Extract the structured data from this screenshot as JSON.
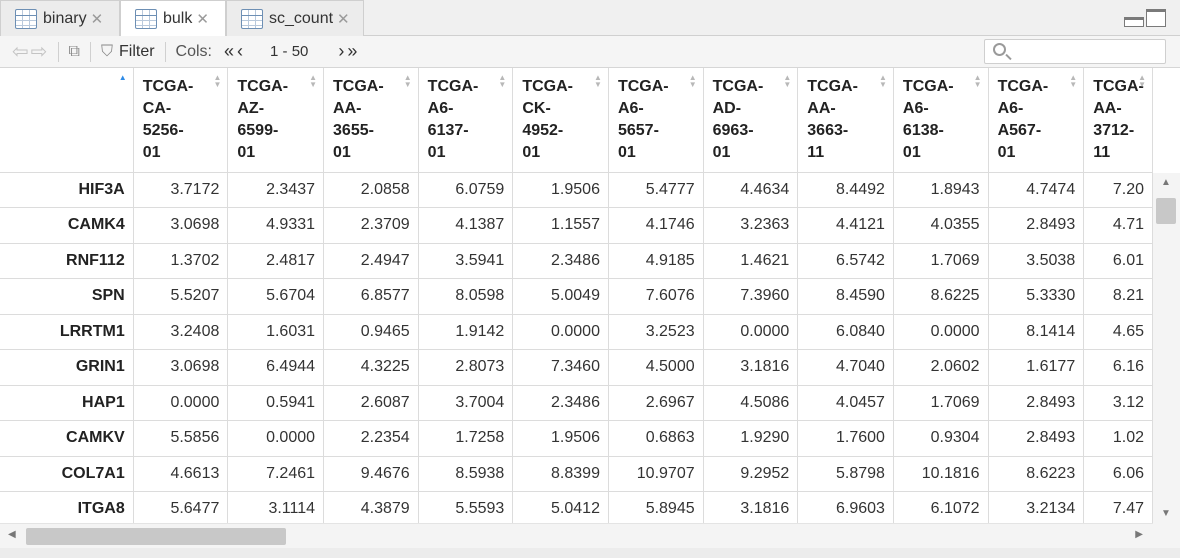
{
  "tabs": [
    {
      "label": "binary",
      "active": false
    },
    {
      "label": "bulk",
      "active": true
    },
    {
      "label": "sc_count",
      "active": false
    }
  ],
  "toolbar": {
    "filter_label": "Filter",
    "cols_label": "Cols:",
    "range_text": "1 - 50",
    "search_placeholder": ""
  },
  "columns": [
    [
      "TCGA-",
      "CA-",
      "5256-",
      "01"
    ],
    [
      "TCGA-",
      "AZ-",
      "6599-",
      "01"
    ],
    [
      "TCGA-",
      "AA-",
      "3655-",
      "01"
    ],
    [
      "TCGA-",
      "A6-",
      "6137-",
      "01"
    ],
    [
      "TCGA-",
      "CK-",
      "4952-",
      "01"
    ],
    [
      "TCGA-",
      "A6-",
      "5657-",
      "01"
    ],
    [
      "TCGA-",
      "AD-",
      "6963-",
      "01"
    ],
    [
      "TCGA-",
      "AA-",
      "3663-",
      "11"
    ],
    [
      "TCGA-",
      "A6-",
      "6138-",
      "01"
    ],
    [
      "TCGA-",
      "A6-",
      "A567-",
      "01"
    ],
    [
      "TCGA-",
      "AA-",
      "3712-",
      "11"
    ]
  ],
  "rows": [
    {
      "name": "HIF3A",
      "values": [
        "3.7172",
        "2.3437",
        "2.0858",
        "6.0759",
        "1.9506",
        "5.4777",
        "4.4634",
        "8.4492",
        "1.8943",
        "4.7474",
        "7.20"
      ]
    },
    {
      "name": "CAMK4",
      "values": [
        "3.0698",
        "4.9331",
        "2.3709",
        "4.1387",
        "1.1557",
        "4.1746",
        "3.2363",
        "4.4121",
        "4.0355",
        "2.8493",
        "4.71"
      ]
    },
    {
      "name": "RNF112",
      "values": [
        "1.3702",
        "2.4817",
        "2.4947",
        "3.5941",
        "2.3486",
        "4.9185",
        "1.4621",
        "6.5742",
        "1.7069",
        "3.5038",
        "6.01"
      ]
    },
    {
      "name": "SPN",
      "values": [
        "5.5207",
        "5.6704",
        "6.8577",
        "8.0598",
        "5.0049",
        "7.6076",
        "7.3960",
        "8.4590",
        "8.6225",
        "5.3330",
        "8.21"
      ]
    },
    {
      "name": "LRRTM1",
      "values": [
        "3.2408",
        "1.6031",
        "0.9465",
        "1.9142",
        "0.0000",
        "3.2523",
        "0.0000",
        "6.0840",
        "0.0000",
        "8.1414",
        "4.65"
      ]
    },
    {
      "name": "GRIN1",
      "values": [
        "3.0698",
        "6.4944",
        "4.3225",
        "2.8073",
        "7.3460",
        "4.5000",
        "3.1816",
        "4.7040",
        "2.0602",
        "1.6177",
        "6.16"
      ]
    },
    {
      "name": "HAP1",
      "values": [
        "0.0000",
        "0.5941",
        "2.6087",
        "3.7004",
        "2.3486",
        "2.6967",
        "4.5086",
        "4.0457",
        "1.7069",
        "2.8493",
        "3.12"
      ]
    },
    {
      "name": "CAMKV",
      "values": [
        "5.5856",
        "0.0000",
        "2.2354",
        "1.7258",
        "1.9506",
        "0.6863",
        "1.9290",
        "1.7600",
        "0.9304",
        "2.8493",
        "1.02"
      ]
    },
    {
      "name": "COL7A1",
      "values": [
        "4.6613",
        "7.2461",
        "9.4676",
        "8.5938",
        "8.8399",
        "10.9707",
        "9.2952",
        "5.8798",
        "10.1816",
        "8.6223",
        "6.06"
      ]
    },
    {
      "name": "ITGA8",
      "values": [
        "5.6477",
        "3.1114",
        "4.3879",
        "5.5593",
        "5.0412",
        "5.8945",
        "3.1816",
        "6.9603",
        "6.1072",
        "3.2134",
        "7.47"
      ]
    }
  ]
}
